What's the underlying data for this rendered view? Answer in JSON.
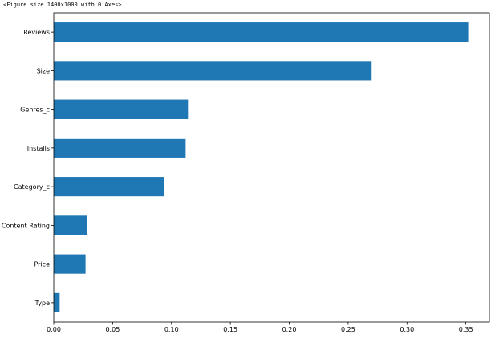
{
  "figure_caption": "<Figure size 1400x1000 with 0 Axes>",
  "chart_data": {
    "type": "bar",
    "orientation": "horizontal",
    "categories": [
      "Reviews",
      "Size",
      "Genres_c",
      "Installs",
      "Category_c",
      "Content Rating",
      "Price",
      "Type"
    ],
    "values": [
      0.352,
      0.27,
      0.114,
      0.112,
      0.094,
      0.028,
      0.027,
      0.005
    ],
    "xlim": [
      0.0,
      0.37
    ],
    "xticks": [
      "0.00",
      "0.05",
      "0.10",
      "0.15",
      "0.20",
      "0.25",
      "0.30",
      "0.35"
    ],
    "xtick_values": [
      0.0,
      0.05,
      0.1,
      0.15,
      0.2,
      0.25,
      0.3,
      0.35
    ],
    "bar_color": "#1f77b4",
    "grid": false,
    "legend": "none",
    "title": "",
    "xlabel": "",
    "ylabel": ""
  }
}
